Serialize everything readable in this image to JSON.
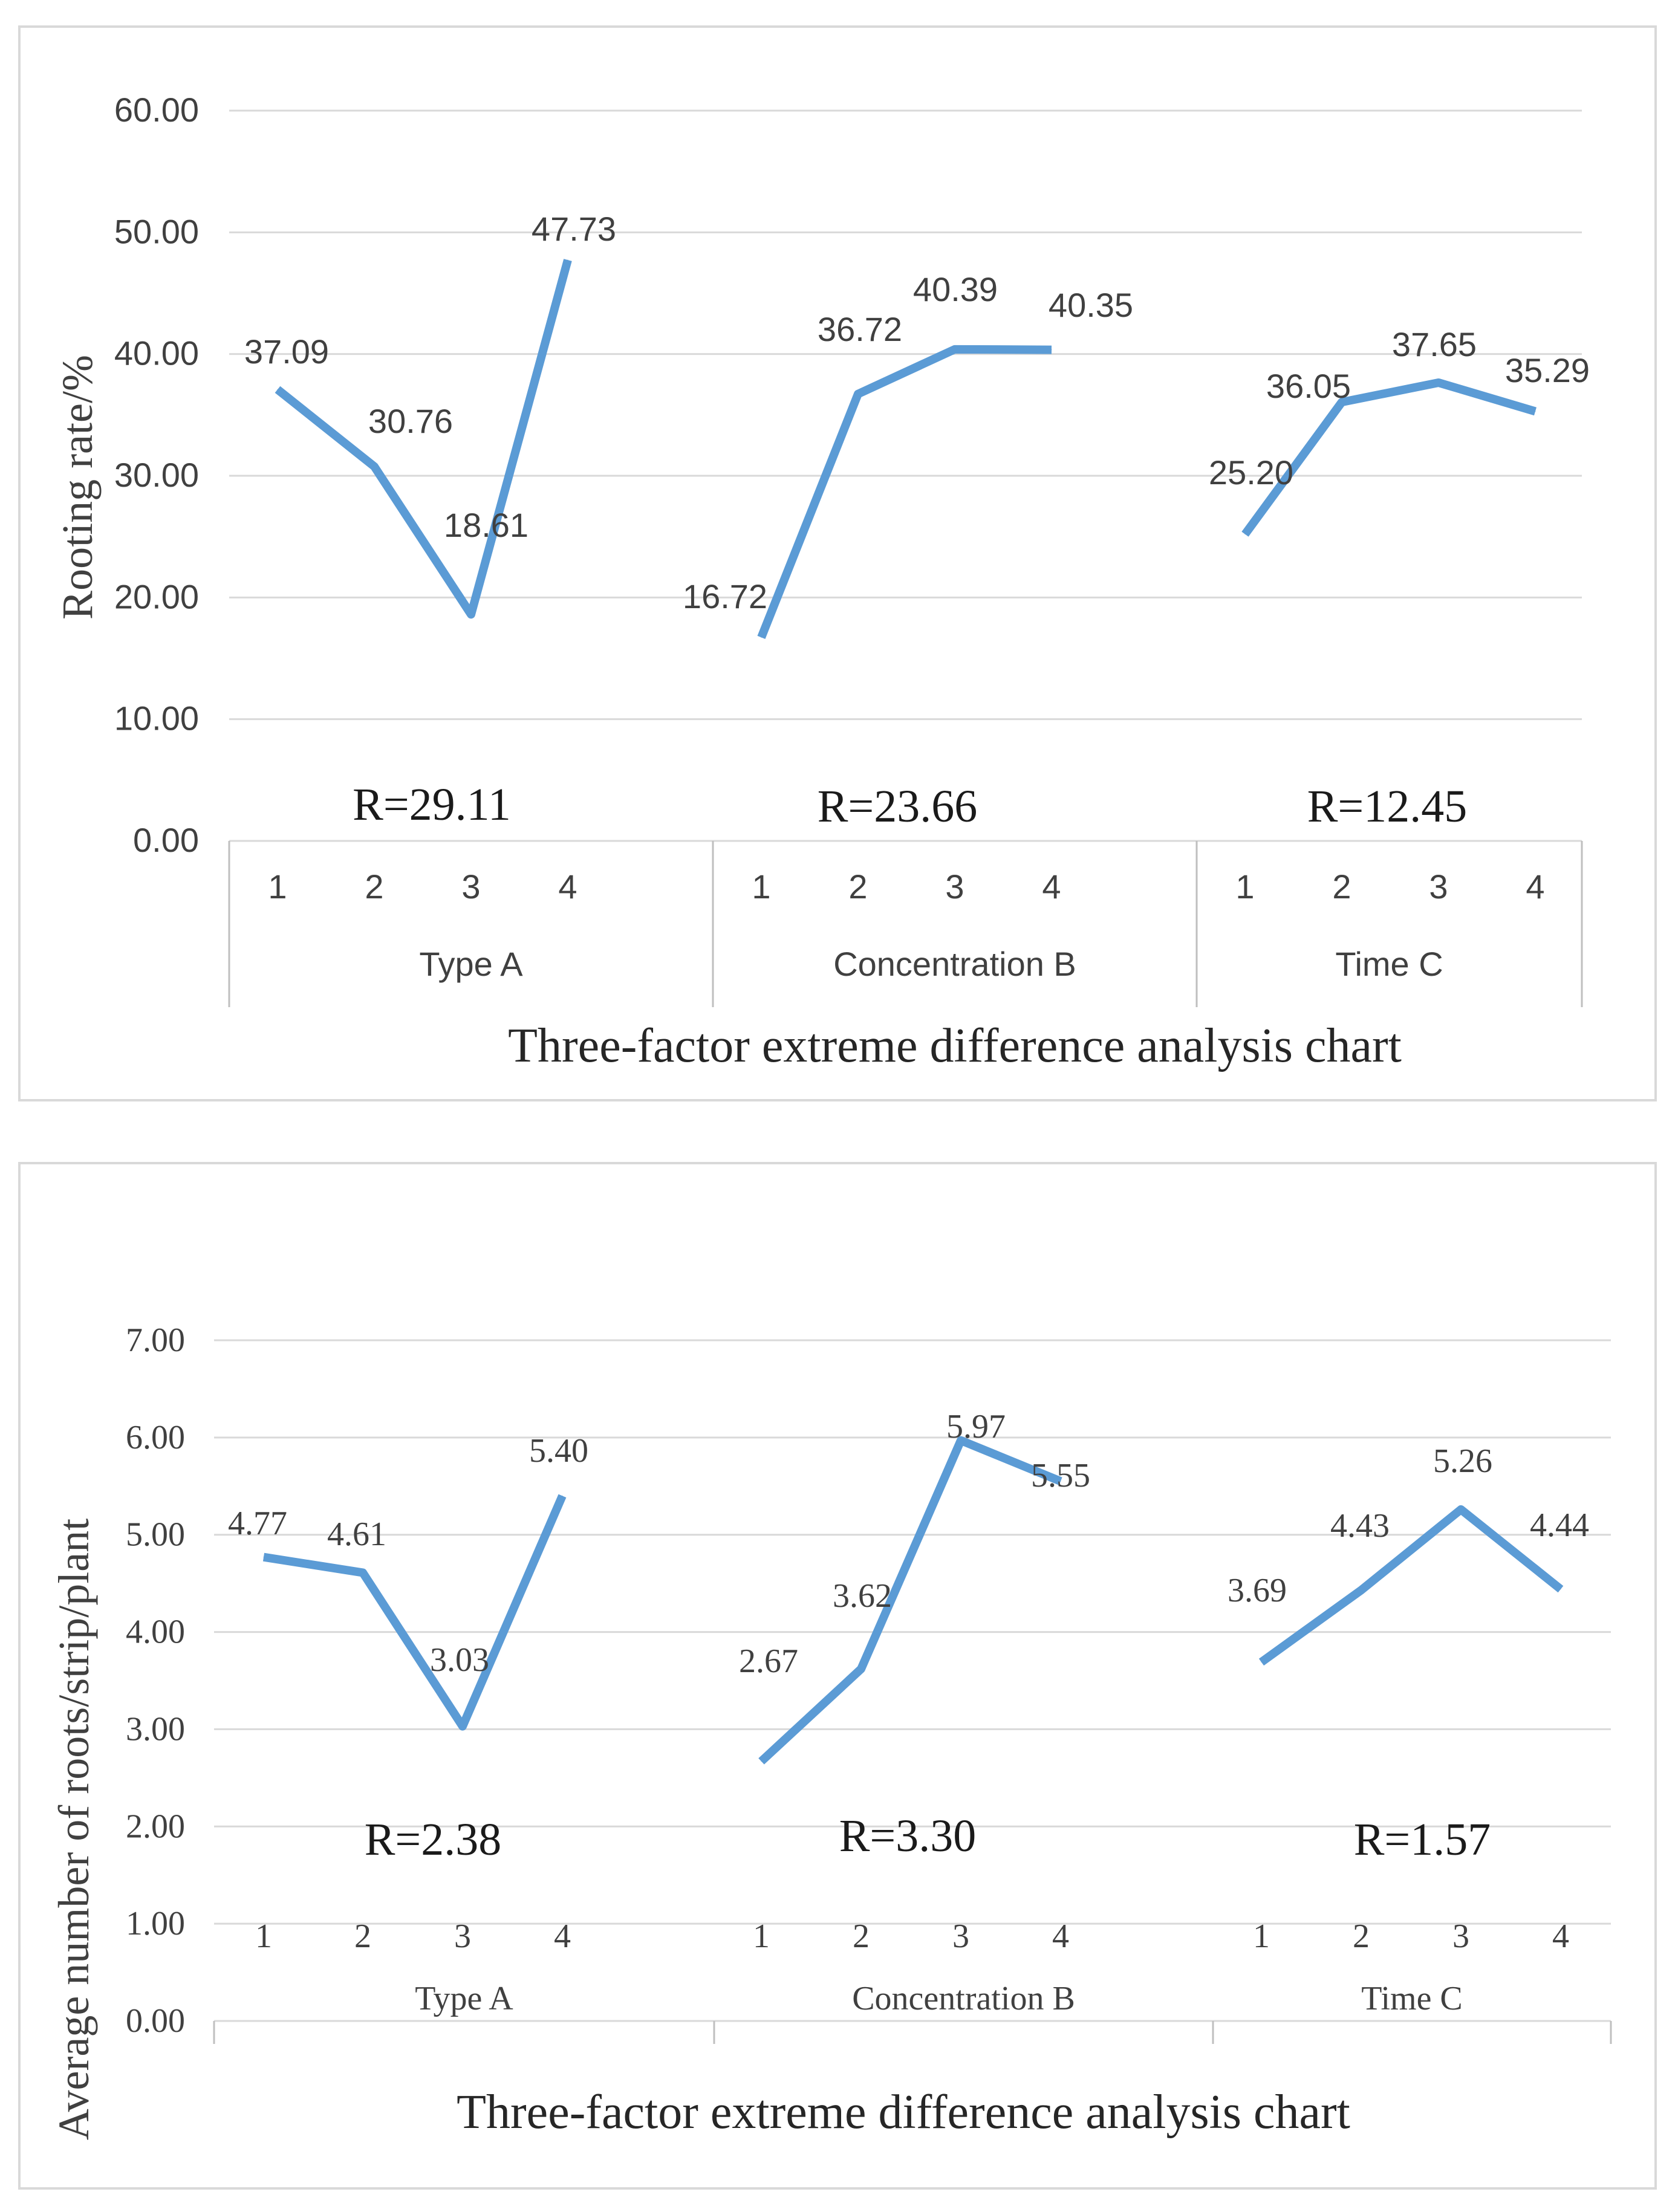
{
  "chart_data": [
    {
      "type": "line",
      "ylabel": "Rooting rate/%",
      "xlabel": "Three-factor extreme difference analysis chart",
      "ylim": [
        0,
        60
      ],
      "yticks": [
        "0.00",
        "10.00",
        "20.00",
        "30.00",
        "40.00",
        "50.00",
        "60.00"
      ],
      "line_color": "#5b9bd5",
      "groups": [
        {
          "name": "Type A",
          "categories": [
            "1",
            "2",
            "3",
            "4"
          ],
          "values": [
            37.09,
            30.76,
            18.61,
            47.73
          ],
          "labels": [
            "37.09",
            "30.76",
            "18.61",
            "47.73"
          ],
          "range_label": "R=29.11"
        },
        {
          "name": "Concentration B",
          "categories": [
            "1",
            "2",
            "3",
            "4"
          ],
          "values": [
            16.72,
            36.72,
            40.39,
            40.35
          ],
          "labels": [
            "16.72",
            "36.72",
            "40.39",
            "40.35"
          ],
          "range_label": "R=23.66"
        },
        {
          "name": "Time C",
          "categories": [
            "1",
            "2",
            "3",
            "4"
          ],
          "values": [
            25.2,
            36.05,
            37.65,
            35.29
          ],
          "labels": [
            "25.20",
            "36.05",
            "37.65",
            "35.29"
          ],
          "range_label": "R=12.45"
        }
      ]
    },
    {
      "type": "line",
      "ylabel": "Average number of roots/strip/plant",
      "xlabel": "Three-factor extreme difference analysis chart",
      "ylim": [
        0,
        7
      ],
      "yticks": [
        "0.00",
        "1.00",
        "2.00",
        "3.00",
        "4.00",
        "5.00",
        "6.00",
        "7.00"
      ],
      "line_color": "#5b9bd5",
      "groups": [
        {
          "name": "Type A",
          "categories": [
            "1",
            "2",
            "3",
            "4"
          ],
          "values": [
            4.77,
            4.61,
            3.03,
            5.4
          ],
          "labels": [
            "4.77",
            "4.61",
            "3.03",
            "5.40"
          ],
          "range_label": "R=2.38"
        },
        {
          "name": "Concentration B",
          "categories": [
            "1",
            "2",
            "3",
            "4"
          ],
          "values": [
            2.67,
            3.62,
            5.97,
            5.55
          ],
          "labels": [
            "2.67",
            "3.62",
            "5.97",
            "5.55"
          ],
          "range_label": "R=3.30"
        },
        {
          "name": "Time C",
          "categories": [
            "1",
            "2",
            "3",
            "4"
          ],
          "values": [
            3.69,
            4.43,
            5.26,
            4.44
          ],
          "labels": [
            "3.69",
            "4.43",
            "5.26",
            "4.44"
          ],
          "range_label": "R=1.57"
        }
      ]
    }
  ]
}
